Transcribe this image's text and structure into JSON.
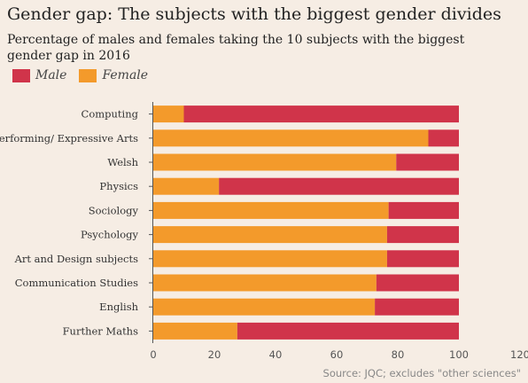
{
  "title": "Gender gap: The subjects with the biggest gender divides",
  "subtitle": "Percentage of males and females taking the 10 subjects with the biggest gender gap in 2016",
  "source": "Source: JQC; excludes \"other sciences\"",
  "colors": {
    "male": "#d0344a",
    "female": "#f39a2b",
    "axis": "#555555",
    "grid": "#e6dcd2"
  },
  "chart_data": {
    "type": "bar",
    "orientation": "horizontal",
    "stacked": true,
    "categories": [
      "Computing",
      "Performing/ Expressive Arts",
      "Welsh",
      "Physics",
      "Sociology",
      "Psychology",
      "Art and Design subjects",
      "Communication Studies",
      "English",
      "Further Maths"
    ],
    "series": [
      {
        "name": "Female",
        "values": [
          10,
          90,
          79.5,
          21.5,
          77,
          76.5,
          76.5,
          73,
          72.5,
          27.5
        ]
      },
      {
        "name": "Male",
        "values": [
          90,
          10,
          20.5,
          78.5,
          23,
          23.5,
          23.5,
          27,
          27.5,
          72.5
        ]
      }
    ],
    "legend": [
      "Male",
      "Female"
    ],
    "legend_position": "top-left",
    "xlim": [
      0,
      120
    ],
    "xticks": [
      0,
      20,
      40,
      60,
      80,
      100,
      120
    ],
    "xlabel": "",
    "ylabel": "",
    "grid": false
  }
}
